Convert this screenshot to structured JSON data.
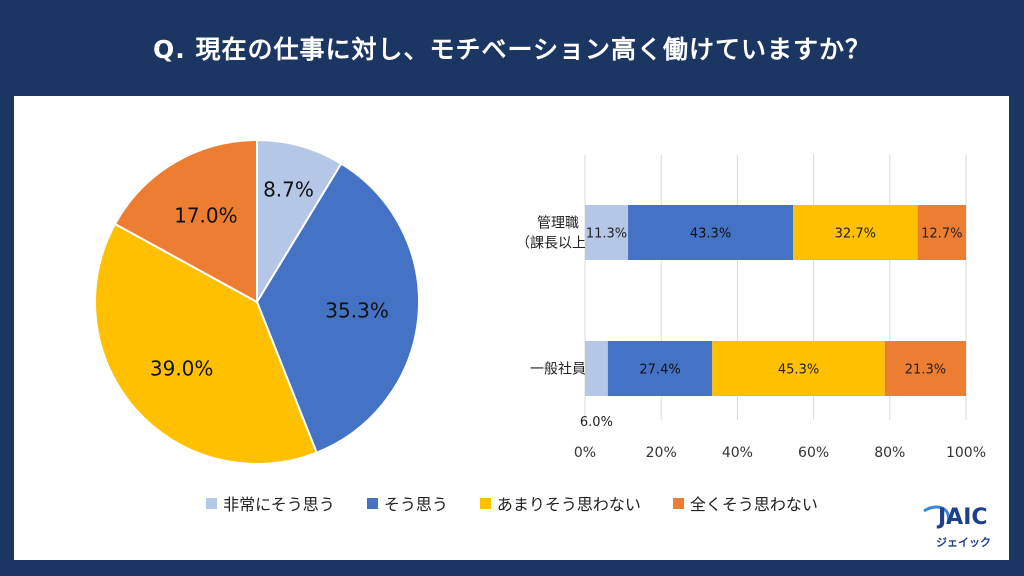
{
  "title": "Q. 現在の仕事に対し、モチベーション高く働けていますか？",
  "legend": [
    {
      "label": "非常にそう思う",
      "color": "#b4c7e7"
    },
    {
      "label": "そう思う",
      "color": "#4472c4"
    },
    {
      "label": "あまりそう思わない",
      "color": "#ffc000"
    },
    {
      "label": "全くそう思わない",
      "color": "#ed7d31"
    }
  ],
  "logo": {
    "text": "JAIC",
    "sub": "ジェイック"
  },
  "chart_data": [
    {
      "type": "pie",
      "labels": [
        "非常にそう思う",
        "そう思う",
        "あまりそう思わない",
        "全くそう思わない"
      ],
      "values": [
        8.7,
        35.3,
        39.0,
        17.0
      ],
      "value_labels": [
        "8.7%",
        "35.3%",
        "39.0%",
        "17.0%"
      ],
      "colors": [
        "#b4c7e7",
        "#4472c4",
        "#ffc000",
        "#ed7d31"
      ]
    },
    {
      "type": "bar",
      "orientation": "horizontal",
      "stacked": true,
      "categories": [
        [
          "管理職",
          "（課長以上）"
        ],
        [
          "一般社員"
        ]
      ],
      "series": [
        {
          "name": "非常にそう思う",
          "values": [
            11.3,
            6.0
          ],
          "labels": [
            "11.3%",
            "6.0%"
          ],
          "color": "#b4c7e7"
        },
        {
          "name": "そう思う",
          "values": [
            43.3,
            27.4
          ],
          "labels": [
            "43.3%",
            "27.4%"
          ],
          "color": "#4472c4"
        },
        {
          "name": "あまりそう思わない",
          "values": [
            32.7,
            45.3
          ],
          "labels": [
            "32.7%",
            "45.3%"
          ],
          "color": "#ffc000"
        },
        {
          "name": "全くそう思わない",
          "values": [
            12.7,
            21.3
          ],
          "labels": [
            "12.7%",
            "21.3%"
          ],
          "color": "#ed7d31"
        }
      ],
      "xlim": [
        0,
        100
      ],
      "xticks": [
        "0%",
        "20%",
        "40%",
        "60%",
        "80%",
        "100%"
      ],
      "grid": true
    }
  ]
}
